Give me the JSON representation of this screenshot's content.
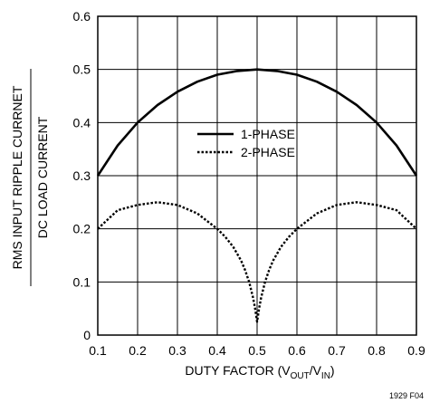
{
  "chart_data": {
    "type": "line",
    "xlabel": {
      "prefix": "DUTY FACTOR (V",
      "sub1": "OUT",
      "mid": "/V",
      "sub2": "IN",
      "suffix": ")"
    },
    "ylabel": {
      "numerator": "RMS INPUT RIPPLE CURRNET",
      "denominator": "DC LOAD CURRENT"
    },
    "xlim": [
      0.1,
      0.9
    ],
    "ylim": [
      0,
      0.6
    ],
    "x_ticks": [
      0.1,
      0.2,
      0.3,
      0.4,
      0.5,
      0.6,
      0.7,
      0.8,
      0.9
    ],
    "x_tick_labels": [
      "0.1",
      "0.2",
      "0.3",
      "0.4",
      "0.5",
      "0.6",
      "0.7",
      "0.8",
      "0.9"
    ],
    "y_ticks": [
      0,
      0.1,
      0.2,
      0.3,
      0.4,
      0.5,
      0.6
    ],
    "y_tick_labels": [
      "0",
      "0.1",
      "0.2",
      "0.3",
      "0.4",
      "0.5",
      "0.6"
    ],
    "grid": true,
    "legend_position": "center",
    "figure_id": "1929 F04",
    "series": [
      {
        "name": "1-PHASE",
        "line_style": "solid",
        "x": [
          0.1,
          0.15,
          0.2,
          0.25,
          0.3,
          0.35,
          0.4,
          0.45,
          0.5,
          0.55,
          0.6,
          0.65,
          0.7,
          0.75,
          0.8,
          0.85,
          0.9
        ],
        "y": [
          0.3,
          0.357,
          0.4,
          0.433,
          0.458,
          0.477,
          0.49,
          0.497,
          0.5,
          0.497,
          0.49,
          0.477,
          0.458,
          0.433,
          0.4,
          0.357,
          0.3
        ]
      },
      {
        "name": "2-PHASE",
        "line_style": "dotted",
        "x": [
          0.1,
          0.15,
          0.2,
          0.25,
          0.3,
          0.35,
          0.4,
          0.42,
          0.44,
          0.46,
          0.47,
          0.48,
          0.49,
          0.495,
          0.5,
          0.505,
          0.51,
          0.52,
          0.53,
          0.54,
          0.56,
          0.58,
          0.6,
          0.65,
          0.7,
          0.75,
          0.8,
          0.85,
          0.9
        ],
        "y": [
          0.2,
          0.235,
          0.245,
          0.25,
          0.245,
          0.229,
          0.2,
          0.185,
          0.166,
          0.14,
          0.122,
          0.1,
          0.07,
          0.05,
          0.025,
          0.05,
          0.07,
          0.1,
          0.122,
          0.14,
          0.166,
          0.185,
          0.2,
          0.229,
          0.245,
          0.25,
          0.245,
          0.235,
          0.2
        ]
      }
    ]
  }
}
